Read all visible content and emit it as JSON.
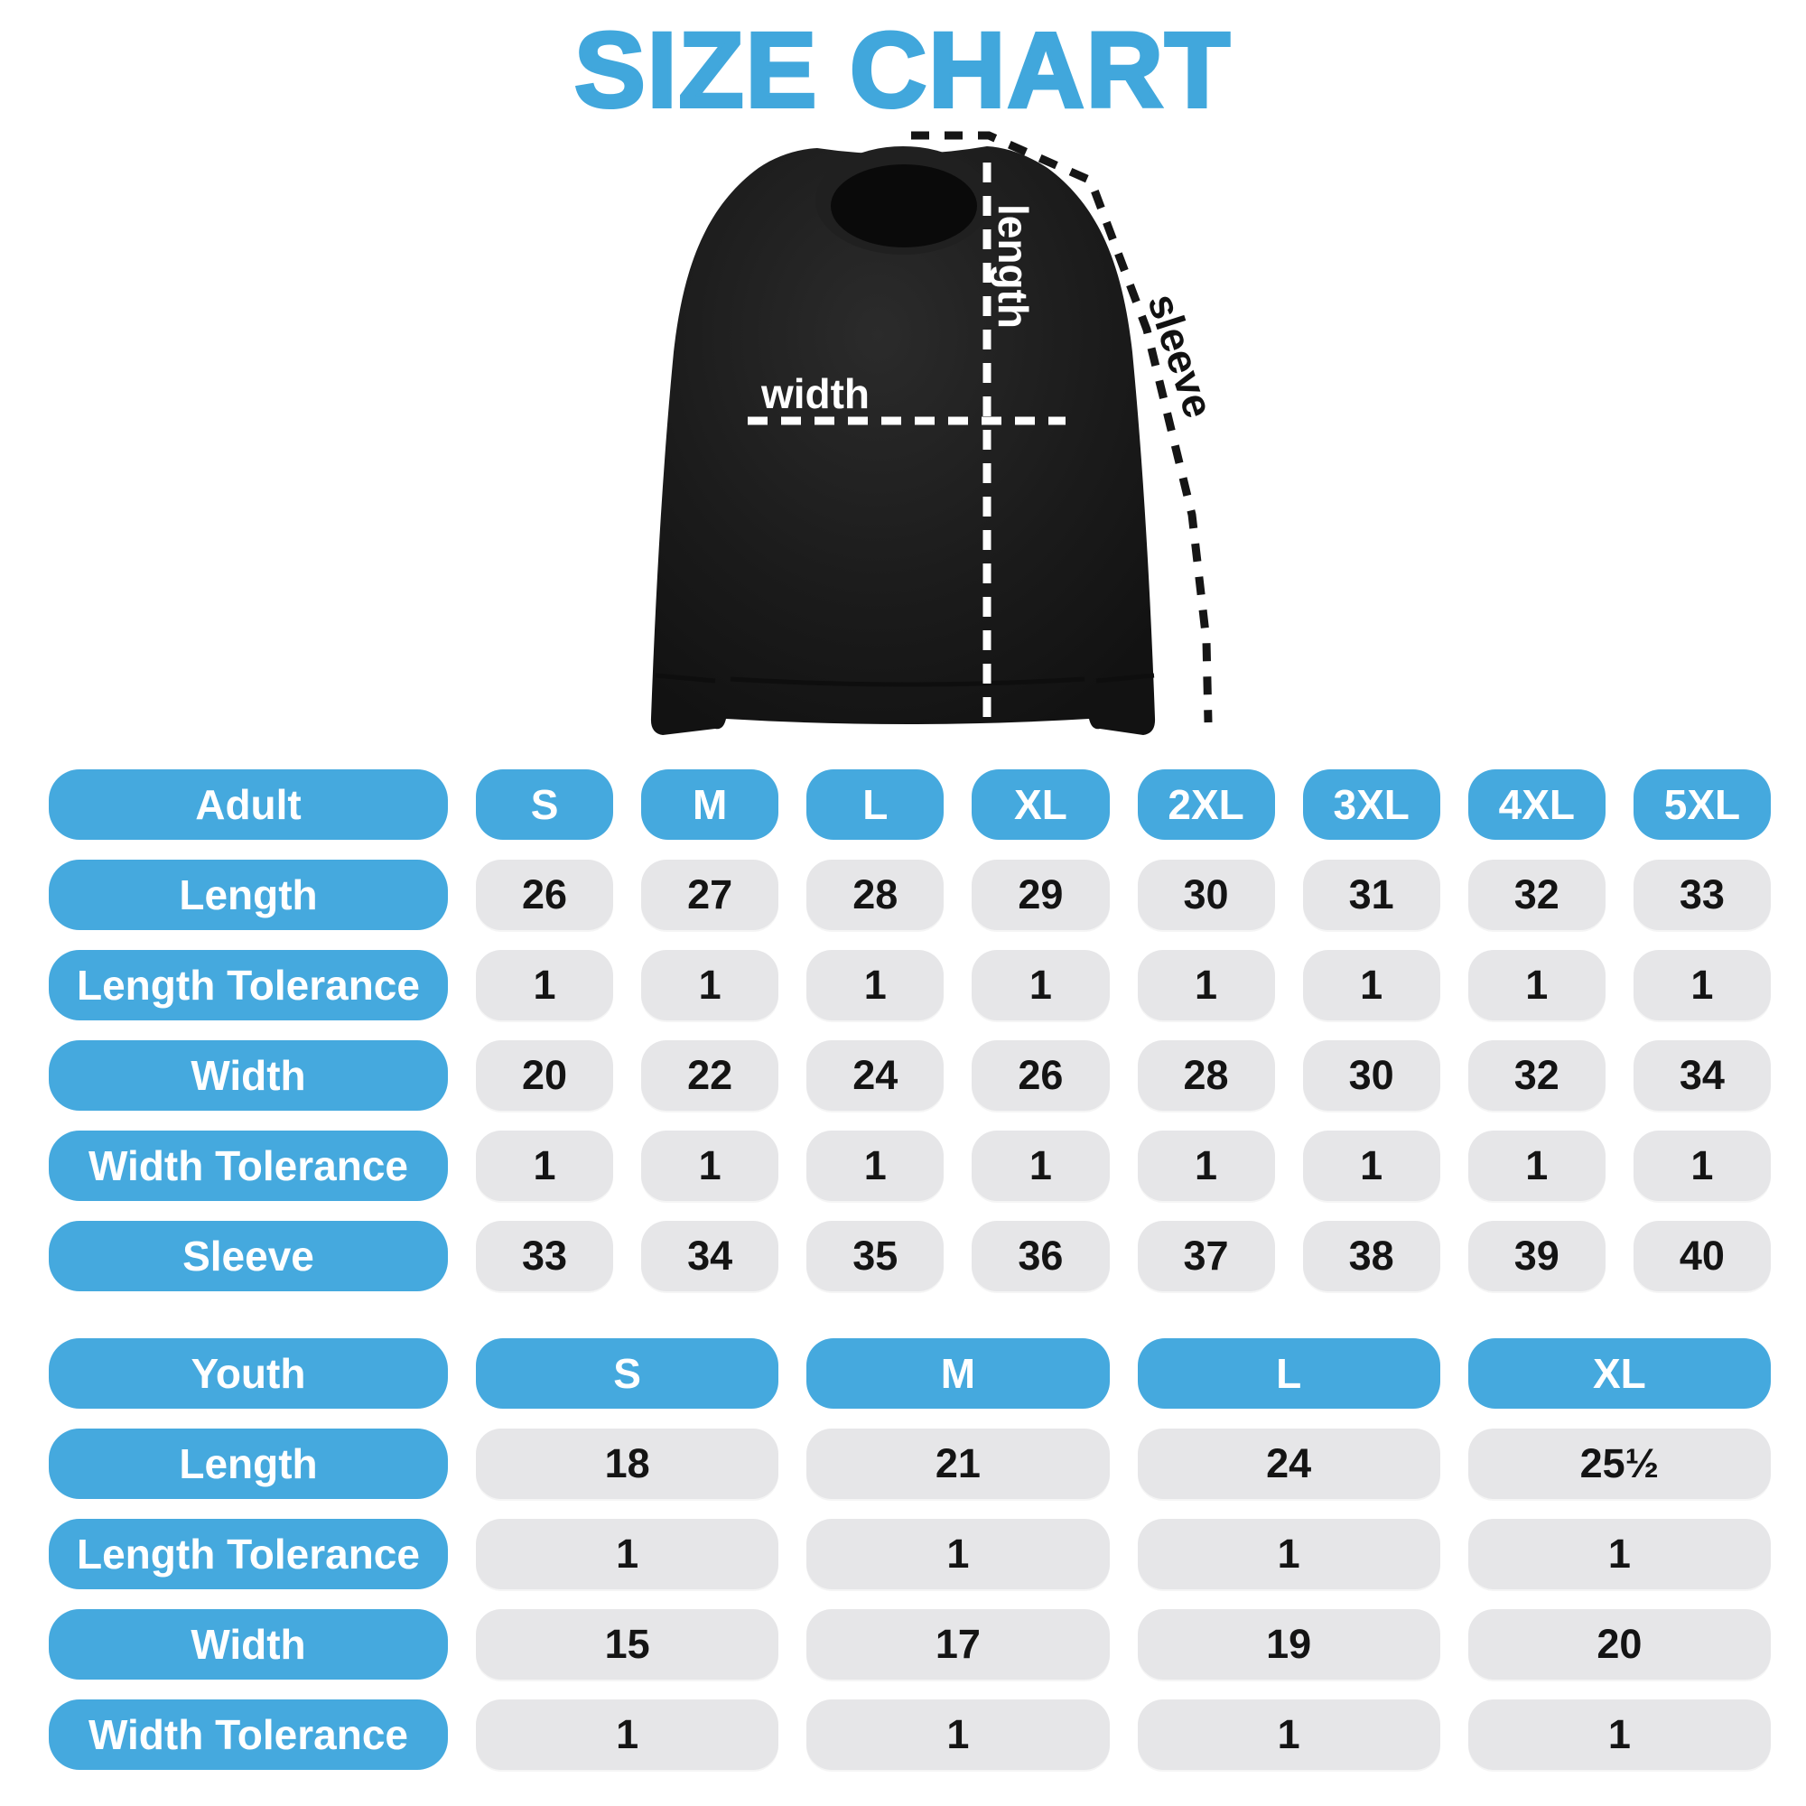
{
  "title": "SIZE CHART",
  "colors": {
    "accent_blue": "#45a9de",
    "title_blue": "#41a7dc",
    "cell_gray": "#e6e6e8",
    "cell_text": "#141414",
    "header_text": "#ffffff",
    "garment_black": "#181818",
    "background": "#ffffff"
  },
  "diagram": {
    "width_label": "width",
    "length_label": "length",
    "sleeve_label": "sleeve"
  },
  "chart_data": [
    {
      "type": "table",
      "name": "adult",
      "header_label": "Adult",
      "sizes": [
        "S",
        "M",
        "L",
        "XL",
        "2XL",
        "3XL",
        "4XL",
        "5XL"
      ],
      "rows": [
        {
          "label": "Length",
          "values": [
            "26",
            "27",
            "28",
            "29",
            "30",
            "31",
            "32",
            "33"
          ]
        },
        {
          "label": "Length Tolerance",
          "values": [
            "1",
            "1",
            "1",
            "1",
            "1",
            "1",
            "1",
            "1"
          ]
        },
        {
          "label": "Width",
          "values": [
            "20",
            "22",
            "24",
            "26",
            "28",
            "30",
            "32",
            "34"
          ]
        },
        {
          "label": "Width Tolerance",
          "values": [
            "1",
            "1",
            "1",
            "1",
            "1",
            "1",
            "1",
            "1"
          ]
        },
        {
          "label": "Sleeve",
          "values": [
            "33",
            "34",
            "35",
            "36",
            "37",
            "38",
            "39",
            "40"
          ]
        }
      ]
    },
    {
      "type": "table",
      "name": "youth",
      "header_label": "Youth",
      "sizes": [
        "S",
        "M",
        "L",
        "XL"
      ],
      "rows": [
        {
          "label": "Length",
          "values": [
            "18",
            "21",
            "24",
            "25½"
          ]
        },
        {
          "label": "Length Tolerance",
          "values": [
            "1",
            "1",
            "1",
            "1"
          ]
        },
        {
          "label": "Width",
          "values": [
            "15",
            "17",
            "19",
            "20"
          ]
        },
        {
          "label": "Width Tolerance",
          "values": [
            "1",
            "1",
            "1",
            "1"
          ]
        }
      ]
    }
  ]
}
